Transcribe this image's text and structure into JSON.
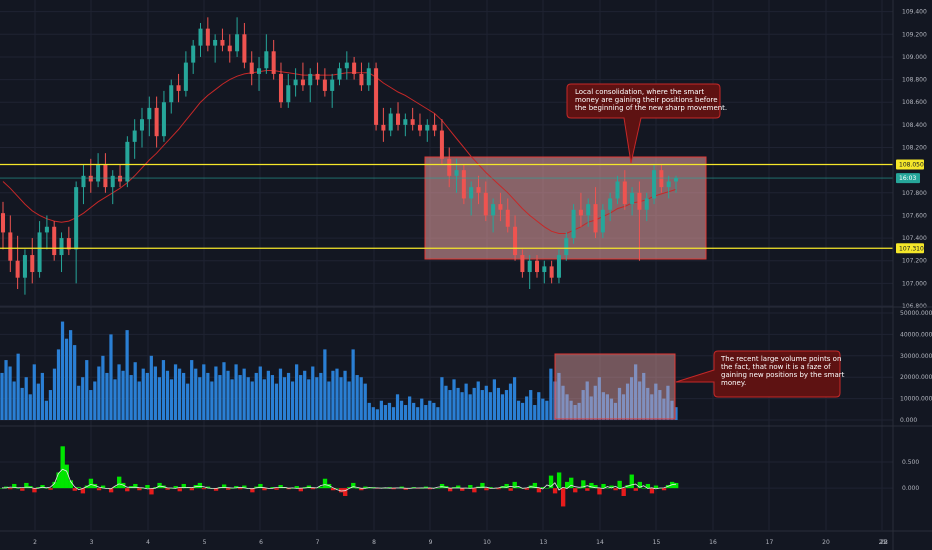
{
  "chart_data": {
    "type": "candlestick",
    "x_ticks": [
      "2",
      "3",
      "4",
      "5",
      "6",
      "7",
      "8",
      "9",
      "10",
      "13",
      "14",
      "15",
      "16",
      "17",
      "20",
      "21",
      "22",
      "23"
    ],
    "colors": {
      "bg": "#131722",
      "grid": "#1f2332",
      "up": "#26a69a",
      "down": "#ef5350",
      "ma": "#c62828",
      "level": "#f5e72a",
      "current": "#26a69a",
      "zone_fill": "#e9a3a3",
      "zone_border": "#e53935",
      "note_bg": "#5e1212",
      "note_border": "#c62828",
      "vol_bar": "#2a7fd4",
      "osc_green": "#00e600",
      "osc_red": "#e81c1c",
      "osc_line": "#e6e6e6"
    },
    "price_panel": {
      "y_ticks": [
        "109.400",
        "109.200",
        "109.000",
        "108.800",
        "108.600",
        "108.400",
        "108.200",
        "107.800",
        "107.600",
        "107.400",
        "107.200",
        "107.000",
        "106.800"
      ],
      "ylim": [
        106.8,
        109.45
      ],
      "resistance": 108.05,
      "support": 107.31,
      "current": 107.93,
      "resistance_label": "108.050",
      "support_label": "107.310",
      "current_label": "16:03",
      "candles": [
        [
          107.62,
          107.72,
          107.3,
          107.45
        ],
        [
          107.45,
          107.6,
          107.1,
          107.2
        ],
        [
          107.2,
          107.42,
          106.95,
          107.05
        ],
        [
          107.05,
          107.3,
          106.9,
          107.25
        ],
        [
          107.25,
          107.4,
          107.0,
          107.1
        ],
        [
          107.1,
          107.55,
          107.05,
          107.45
        ],
        [
          107.45,
          107.6,
          107.3,
          107.5
        ],
        [
          107.5,
          107.55,
          107.2,
          107.25
        ],
        [
          107.25,
          107.45,
          107.1,
          107.4
        ],
        [
          107.4,
          107.5,
          107.25,
          107.3
        ],
        [
          107.3,
          107.9,
          107.0,
          107.85
        ],
        [
          107.85,
          108.05,
          107.7,
          107.95
        ],
        [
          107.95,
          108.1,
          107.8,
          107.9
        ],
        [
          107.9,
          108.15,
          107.85,
          108.05
        ],
        [
          108.05,
          108.15,
          107.8,
          107.85
        ],
        [
          107.85,
          108.0,
          107.7,
          107.95
        ],
        [
          107.95,
          108.05,
          107.85,
          107.9
        ],
        [
          107.9,
          108.3,
          107.85,
          108.25
        ],
        [
          108.25,
          108.45,
          108.1,
          108.35
        ],
        [
          108.35,
          108.55,
          108.2,
          108.45
        ],
        [
          108.45,
          108.65,
          108.3,
          108.55
        ],
        [
          108.55,
          108.65,
          108.2,
          108.3
        ],
        [
          108.3,
          108.7,
          108.25,
          108.6
        ],
        [
          108.6,
          108.8,
          108.5,
          108.75
        ],
        [
          108.75,
          108.85,
          108.6,
          108.7
        ],
        [
          108.7,
          109.05,
          108.65,
          108.95
        ],
        [
          108.95,
          109.15,
          108.85,
          109.1
        ],
        [
          109.1,
          109.3,
          109.0,
          109.25
        ],
        [
          109.25,
          109.35,
          109.05,
          109.1
        ],
        [
          109.1,
          109.2,
          108.95,
          109.15
        ],
        [
          109.15,
          109.25,
          109.05,
          109.1
        ],
        [
          109.1,
          109.2,
          108.95,
          109.05
        ],
        [
          109.05,
          109.35,
          109.0,
          109.2
        ],
        [
          109.2,
          109.3,
          108.9,
          108.95
        ],
        [
          108.95,
          109.05,
          108.75,
          108.85
        ],
        [
          108.85,
          109.0,
          108.7,
          108.9
        ],
        [
          108.9,
          109.2,
          108.85,
          109.05
        ],
        [
          109.05,
          109.15,
          108.8,
          108.85
        ],
        [
          108.85,
          108.95,
          108.55,
          108.6
        ],
        [
          108.6,
          108.85,
          108.55,
          108.75
        ],
        [
          108.75,
          108.9,
          108.65,
          108.8
        ],
        [
          108.8,
          108.95,
          108.7,
          108.75
        ],
        [
          108.75,
          108.9,
          108.6,
          108.85
        ],
        [
          108.85,
          108.95,
          108.75,
          108.8
        ],
        [
          108.8,
          108.9,
          108.65,
          108.7
        ],
        [
          108.7,
          108.85,
          108.55,
          108.8
        ],
        [
          108.8,
          108.95,
          108.75,
          108.9
        ],
        [
          108.9,
          109.05,
          108.8,
          108.95
        ],
        [
          108.95,
          109.0,
          108.8,
          108.85
        ],
        [
          108.85,
          108.95,
          108.7,
          108.75
        ],
        [
          108.75,
          108.95,
          108.7,
          108.9
        ],
        [
          108.9,
          108.95,
          108.35,
          108.4
        ],
        [
          108.4,
          108.55,
          108.25,
          108.35
        ],
        [
          108.35,
          108.55,
          108.3,
          108.5
        ],
        [
          108.5,
          108.6,
          108.35,
          108.4
        ],
        [
          108.4,
          108.5,
          108.3,
          108.45
        ],
        [
          108.45,
          108.55,
          108.35,
          108.4
        ],
        [
          108.4,
          108.5,
          108.3,
          108.35
        ],
        [
          108.35,
          108.45,
          108.25,
          108.4
        ],
        [
          108.4,
          108.5,
          108.3,
          108.35
        ],
        [
          108.35,
          108.45,
          108.05,
          108.1
        ],
        [
          108.1,
          108.2,
          107.85,
          107.95
        ],
        [
          107.95,
          108.1,
          107.8,
          108.0
        ],
        [
          108.0,
          108.05,
          107.7,
          107.75
        ],
        [
          107.75,
          107.9,
          107.6,
          107.85
        ],
        [
          107.85,
          107.95,
          107.7,
          107.8
        ],
        [
          107.8,
          107.9,
          107.55,
          107.6
        ],
        [
          107.6,
          107.75,
          107.45,
          107.7
        ],
        [
          107.7,
          107.8,
          107.55,
          107.65
        ],
        [
          107.65,
          107.75,
          107.45,
          107.5
        ],
        [
          107.5,
          107.6,
          107.2,
          107.25
        ],
        [
          107.25,
          107.3,
          107.05,
          107.1
        ],
        [
          107.1,
          107.25,
          106.95,
          107.2
        ],
        [
          107.2,
          107.25,
          107.05,
          107.1
        ],
        [
          107.1,
          107.2,
          107.0,
          107.15
        ],
        [
          107.15,
          107.2,
          107.0,
          107.05
        ],
        [
          107.05,
          107.3,
          107.0,
          107.25
        ],
        [
          107.25,
          107.45,
          107.2,
          107.4
        ],
        [
          107.4,
          107.7,
          107.35,
          107.65
        ],
        [
          107.65,
          107.8,
          107.5,
          107.6
        ],
        [
          107.6,
          107.75,
          107.5,
          107.7
        ],
        [
          107.7,
          107.85,
          107.4,
          107.45
        ],
        [
          107.45,
          107.7,
          107.4,
          107.65
        ],
        [
          107.65,
          107.8,
          107.55,
          107.75
        ],
        [
          107.75,
          107.95,
          107.7,
          107.9
        ],
        [
          107.9,
          108.0,
          107.65,
          107.7
        ],
        [
          107.7,
          107.85,
          107.6,
          107.8
        ],
        [
          107.8,
          107.9,
          107.2,
          107.65
        ],
        [
          107.65,
          107.8,
          107.55,
          107.75
        ],
        [
          107.75,
          108.05,
          107.7,
          108.0
        ],
        [
          108.0,
          108.05,
          107.8,
          107.85
        ],
        [
          107.85,
          107.95,
          107.75,
          107.9
        ],
        [
          107.9,
          107.95,
          107.8,
          107.93
        ]
      ],
      "ma": [
        107.9,
        107.84,
        107.77,
        107.7,
        107.64,
        107.6,
        107.57,
        107.55,
        107.54,
        107.55,
        107.58,
        107.62,
        107.67,
        107.72,
        107.76,
        107.8,
        107.84,
        107.89,
        107.95,
        108.02,
        108.09,
        108.15,
        108.22,
        108.29,
        108.36,
        108.44,
        108.52,
        108.6,
        108.66,
        108.71,
        108.76,
        108.8,
        108.83,
        108.85,
        108.86,
        108.87,
        108.88,
        108.88,
        108.87,
        108.86,
        108.85,
        108.84,
        108.84,
        108.84,
        108.84,
        108.84,
        108.85,
        108.86,
        108.86,
        108.86,
        108.86,
        108.82,
        108.77,
        108.73,
        108.69,
        108.66,
        108.62,
        108.58,
        108.54,
        108.5,
        108.44,
        108.36,
        108.28,
        108.2,
        108.12,
        108.05,
        107.98,
        107.92,
        107.86,
        107.8,
        107.73,
        107.66,
        107.6,
        107.55,
        107.5,
        107.46,
        107.44,
        107.44,
        107.47,
        107.5,
        107.54,
        107.56,
        107.59,
        107.62,
        107.66,
        107.68,
        107.71,
        107.72,
        107.74,
        107.77,
        107.79,
        107.81,
        107.83
      ]
    },
    "volume_panel": {
      "y_ticks": [
        "50000.000",
        "40000.000",
        "30000.000",
        "20000.000",
        "10000.000",
        "0.000"
      ],
      "ylim": [
        0,
        50000
      ],
      "values": [
        22000,
        28000,
        25000,
        18000,
        31000,
        15000,
        20000,
        12000,
        26000,
        17000,
        22000,
        9000,
        14000,
        24000,
        33000,
        46000,
        38000,
        42000,
        35000,
        16000,
        20000,
        28000,
        14000,
        18000,
        25000,
        30000,
        22000,
        40000,
        19000,
        26000,
        23000,
        42000,
        21000,
        27000,
        18000,
        24000,
        22000,
        30000,
        25000,
        20000,
        28000,
        23000,
        19000,
        26000,
        24000,
        22000,
        17000,
        28000,
        24000,
        20000,
        26000,
        22000,
        18000,
        25000,
        21000,
        27000,
        23000,
        19000,
        26000,
        21000,
        24000,
        20000,
        18000,
        22000,
        25000,
        19000,
        23000,
        21000,
        17000,
        24000,
        20000,
        22000,
        18000,
        26000,
        21000,
        23000,
        19000,
        25000,
        20000,
        22000,
        33000,
        18000,
        23000,
        24000,
        20000,
        23000,
        18000,
        33000,
        21000,
        20000,
        17000,
        8000,
        6000,
        5000,
        9000,
        7000,
        8000,
        6000,
        12000,
        9000,
        7000,
        11000,
        8000,
        6000,
        10000,
        7000,
        9000,
        8000,
        6000,
        20000,
        16000,
        14000,
        19000,
        15000,
        13000,
        17000,
        12000,
        15000,
        18000,
        14000,
        16000,
        13000,
        19000,
        15000,
        12000,
        14000,
        17000,
        20000,
        9000,
        8000,
        11000,
        14000,
        7000,
        13000,
        10000,
        9000,
        24000,
        18000,
        22000,
        16000,
        12000,
        9000,
        7000,
        8000,
        14000,
        18000,
        11000,
        16000,
        20000,
        13000,
        12000,
        10000,
        8000,
        15000,
        12000,
        17000,
        20000,
        26000,
        18000,
        22000,
        15000,
        12000,
        17000,
        14000,
        10000,
        16000,
        9000,
        6000
      ]
    },
    "oscillator_panel": {
      "y_ticks": [
        "0.500",
        "0.000"
      ],
      "ylim": [
        -0.8,
        1.15
      ],
      "values": [
        0.0,
        0.03,
        -0.02,
        0.08,
        0.0,
        -0.05,
        0.1,
        0.04,
        -0.08,
        0.02,
        0.06,
        0.0,
        -0.03,
        0.12,
        0.3,
        0.8,
        0.45,
        0.15,
        -0.05,
        0.02,
        -0.1,
        0.05,
        0.18,
        0.08,
        -0.04,
        0.05,
        0.0,
        -0.08,
        0.03,
        0.22,
        0.1,
        -0.06,
        0.04,
        0.08,
        -0.04,
        0.0,
        0.06,
        -0.12,
        0.02,
        0.1,
        0.05,
        -0.03,
        0.0,
        0.04,
        -0.06,
        0.08,
        0.02,
        -0.04,
        0.06,
        0.1,
        -0.02,
        0.03,
        0.0,
        -0.05,
        0.02,
        0.07,
        -0.03,
        0.0,
        0.04,
        -0.02,
        0.05,
        0.0,
        -0.08,
        0.03,
        0.08,
        -0.04,
        0.0,
        0.02,
        -0.03,
        0.06,
        0.02,
        -0.02,
        0.0,
        0.04,
        -0.06,
        0.02,
        0.05,
        -0.02,
        0.01,
        0.03,
        0.18,
        0.08,
        -0.04,
        0.0,
        -0.08,
        -0.15,
        0.02,
        0.1,
        0.0,
        -0.04,
        0.03,
        0.0,
        0.02,
        -0.01,
        0.01,
        0.0,
        0.02,
        -0.02,
        0.01,
        0.03,
        -0.03,
        0.0,
        0.02,
        -0.01,
        0.0,
        0.03,
        -0.02,
        0.01,
        0.0,
        0.08,
        0.04,
        -0.06,
        0.02,
        0.05,
        -0.05,
        0.0,
        0.06,
        -0.08,
        0.03,
        0.1,
        -0.04,
        0.02,
        0.0,
        -0.02,
        0.04,
        0.08,
        -0.05,
        0.12,
        0.02,
        0.0,
        -0.03,
        0.05,
        0.1,
        -0.08,
        0.02,
        0.0,
        0.24,
        -0.1,
        0.3,
        -0.35,
        0.12,
        0.2,
        -0.08,
        0.0,
        0.15,
        -0.05,
        0.1,
        0.06,
        -0.12,
        0.08,
        0.0,
        0.05,
        -0.04,
        0.14,
        -0.15,
        0.06,
        0.26,
        -0.05,
        0.12,
        0.0,
        0.08,
        -0.1,
        0.05,
        0.0,
        -0.04,
        0.06,
        0.12,
        0.1
      ]
    },
    "annotations": {
      "note1": [
        "Local consolidation, where the smart",
        "money are gaining their positions before",
        "the beginning of the new sharp movement."
      ],
      "note2": [
        "The recent large volume points on",
        "the fact, that now it is a faze of",
        "gaining new positions by the smart",
        "money."
      ]
    }
  }
}
